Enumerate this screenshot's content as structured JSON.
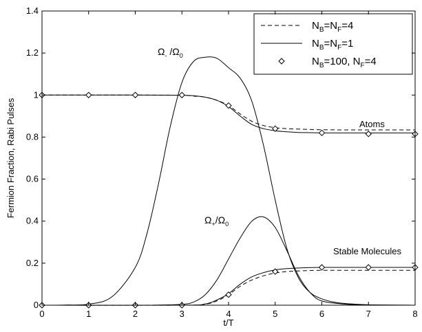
{
  "chart_data": {
    "type": "line",
    "xlabel": "t/T",
    "ylabel": "Fermion Fraction, Rabi Pulses",
    "xlim": [
      0,
      8
    ],
    "ylim": [
      0,
      1.4
    ],
    "xticks": [
      "0",
      "1",
      "2",
      "3",
      "4",
      "5",
      "6",
      "7",
      "8"
    ],
    "yticks": [
      "0",
      "0.2",
      "0.4",
      "0.6",
      "0.8",
      "1",
      "1.2",
      "1.4"
    ],
    "grid": false,
    "legend": {
      "placement": "top-right",
      "entries": [
        {
          "style": "dashed",
          "parts": [
            [
              "N",
              ""
            ],
            [
              "B",
              "sub"
            ],
            [
              "=N",
              ""
            ],
            [
              "F",
              "sub"
            ],
            [
              "=4",
              ""
            ]
          ]
        },
        {
          "style": "solid",
          "parts": [
            [
              "N",
              ""
            ],
            [
              "B",
              "sub"
            ],
            [
              "=N",
              ""
            ],
            [
              "F",
              "sub"
            ],
            [
              "=1",
              ""
            ]
          ]
        },
        {
          "style": "diamond",
          "parts": [
            [
              "N",
              ""
            ],
            [
              "B",
              "sub"
            ],
            [
              "=100, N",
              ""
            ],
            [
              "F",
              "sub"
            ],
            [
              "=4",
              ""
            ]
          ]
        }
      ]
    },
    "annotations": {
      "omega_minus": {
        "parts": [
          [
            "Ω",
            ""
          ],
          [
            "-",
            "sub"
          ],
          [
            " /Ω",
            ""
          ],
          [
            "0",
            "sub"
          ]
        ]
      },
      "omega_plus": {
        "parts": [
          [
            "Ω",
            ""
          ],
          [
            "+",
            "sub"
          ],
          [
            "/Ω",
            ""
          ],
          [
            "0",
            "sub"
          ]
        ]
      },
      "atoms": "Atoms",
      "stable_molecules": "Stable Molecules"
    },
    "series": [
      {
        "style": "solid",
        "x": [
          0,
          0.5,
          1,
          1.5,
          2,
          2.25,
          2.5,
          2.75,
          3,
          3.25,
          3.5,
          3.75,
          4,
          4.25,
          4.5,
          4.75,
          5,
          5.25,
          5.5,
          5.75,
          6,
          6.25,
          6.5,
          7,
          8
        ],
        "y": [
          0,
          0.001,
          0.005,
          0.04,
          0.18,
          0.34,
          0.58,
          0.85,
          1.06,
          1.16,
          1.18,
          1.175,
          1.13,
          1.08,
          0.97,
          0.76,
          0.5,
          0.27,
          0.13,
          0.06,
          0.03,
          0.015,
          0.008,
          0.002,
          0
        ]
      },
      {
        "style": "solid",
        "x": [
          0,
          2,
          2.5,
          3,
          3.25,
          3.5,
          3.75,
          4,
          4.25,
          4.5,
          4.75,
          5,
          5.25,
          5.5,
          5.75,
          6,
          6.5,
          7,
          8
        ],
        "y": [
          0,
          0,
          0.001,
          0.004,
          0.015,
          0.05,
          0.12,
          0.22,
          0.32,
          0.4,
          0.42,
          0.37,
          0.26,
          0.14,
          0.06,
          0.02,
          0.005,
          0.001,
          0
        ]
      },
      {
        "style": "dashed",
        "x": [
          0,
          2,
          3,
          3.25,
          3.5,
          3.75,
          4,
          4.25,
          4.5,
          4.75,
          5,
          5.25,
          5.5,
          5.75,
          6,
          6.5,
          7,
          8
        ],
        "y": [
          1,
          1,
          0.999,
          0.995,
          0.99,
          0.975,
          0.95,
          0.91,
          0.875,
          0.855,
          0.845,
          0.84,
          0.838,
          0.836,
          0.835,
          0.834,
          0.834,
          0.834
        ]
      },
      {
        "style": "solid",
        "x": [
          0,
          2,
          3,
          3.25,
          3.5,
          3.75,
          4,
          4.25,
          4.5,
          4.75,
          5,
          5.25,
          5.5,
          5.75,
          6,
          6.5,
          7,
          8
        ],
        "y": [
          1,
          1,
          0.999,
          0.997,
          0.99,
          0.975,
          0.945,
          0.9,
          0.86,
          0.84,
          0.83,
          0.825,
          0.822,
          0.821,
          0.82,
          0.82,
          0.82,
          0.82
        ]
      },
      {
        "style": "dashed",
        "x": [
          0,
          3,
          3.5,
          3.75,
          4,
          4.25,
          4.5,
          4.75,
          5,
          5.25,
          5.5,
          5.75,
          6,
          6.5,
          7,
          8
        ],
        "y": [
          0,
          0,
          0.005,
          0.02,
          0.05,
          0.09,
          0.12,
          0.14,
          0.153,
          0.16,
          0.163,
          0.165,
          0.166,
          0.166,
          0.166,
          0.166
        ]
      },
      {
        "style": "solid",
        "x": [
          0,
          3,
          3.5,
          3.75,
          4,
          4.25,
          4.5,
          4.75,
          5,
          5.25,
          5.5,
          5.75,
          6,
          6.5,
          7,
          8
        ],
        "y": [
          0,
          0,
          0.006,
          0.025,
          0.055,
          0.1,
          0.135,
          0.155,
          0.168,
          0.174,
          0.177,
          0.179,
          0.18,
          0.18,
          0.18,
          0.18
        ]
      },
      {
        "style": "diamond",
        "x": [
          0,
          1,
          2,
          3,
          4,
          5,
          6,
          7,
          8
        ],
        "y": [
          1,
          1,
          1,
          1,
          0.95,
          0.84,
          0.82,
          0.815,
          0.815
        ]
      },
      {
        "style": "diamond",
        "x": [
          0,
          1,
          2,
          3,
          4,
          5,
          6,
          7,
          8
        ],
        "y": [
          0,
          0,
          0,
          0,
          0.05,
          0.16,
          0.18,
          0.18,
          0.18
        ]
      }
    ]
  }
}
